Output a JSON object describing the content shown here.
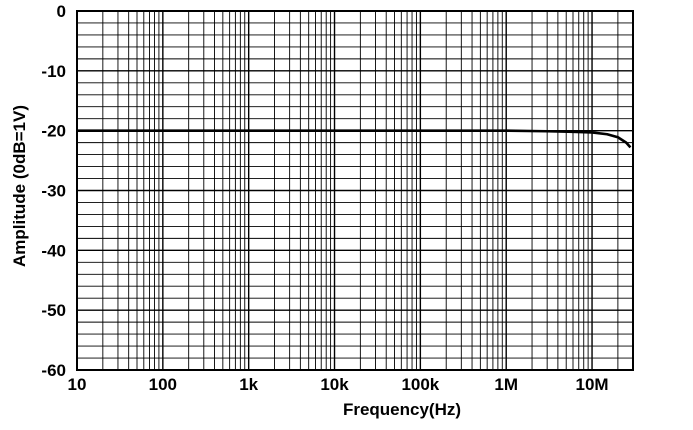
{
  "chart_data": {
    "type": "line",
    "title": "",
    "xlabel": "Frequency(Hz)",
    "ylabel": "Amplitude (0dB=1V)",
    "x_scale": "log",
    "xlim": [
      10,
      30000000
    ],
    "ylim": [
      -60,
      0
    ],
    "grid": true,
    "x_tick_labels": [
      "10",
      "100",
      "1k",
      "10k",
      "100k",
      "1M",
      "10M"
    ],
    "x_tick_values": [
      10,
      100,
      1000,
      10000,
      100000,
      1000000,
      10000000
    ],
    "y_tick_labels": [
      "0",
      "-10",
      "-20",
      "-30",
      "-40",
      "-50",
      "-60"
    ],
    "y_tick_values": [
      0,
      -10,
      -20,
      -30,
      -40,
      -50,
      -60
    ],
    "series": [
      {
        "x": [
          10,
          100,
          1000,
          10000,
          100000,
          1000000,
          3000000,
          6000000,
          10000000,
          15000000,
          20000000,
          25000000,
          28000000
        ],
        "y": [
          -20,
          -20,
          -20,
          -20,
          -20,
          -20,
          -20.1,
          -20.2,
          -20.3,
          -20.6,
          -21.1,
          -22.0,
          -22.8
        ]
      }
    ],
    "colors": {
      "grid": "#000000",
      "line": "#000000",
      "background": "#ffffff"
    }
  }
}
